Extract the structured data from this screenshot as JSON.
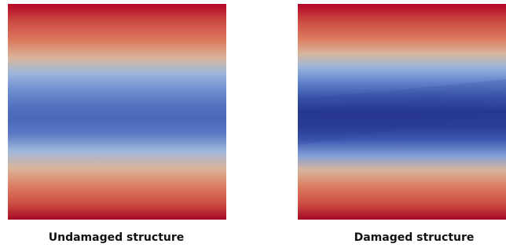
{
  "figure": {
    "panels": [
      {
        "caption": "Undamaged structure",
        "image": "color-field-plot",
        "colormap": [
          "#b40426",
          "#dc7a5e",
          "#d8b59c",
          "#9eb6dc",
          "#5572c0",
          "#4a67b8"
        ]
      },
      {
        "caption": "Damaged structure",
        "image": "color-field-plot",
        "colormap": [
          "#b40426",
          "#dc7a5e",
          "#d8b59c",
          "#9eb6dc",
          "#4f6ec0",
          "#2f4aa0",
          "#27378f"
        ]
      }
    ]
  }
}
